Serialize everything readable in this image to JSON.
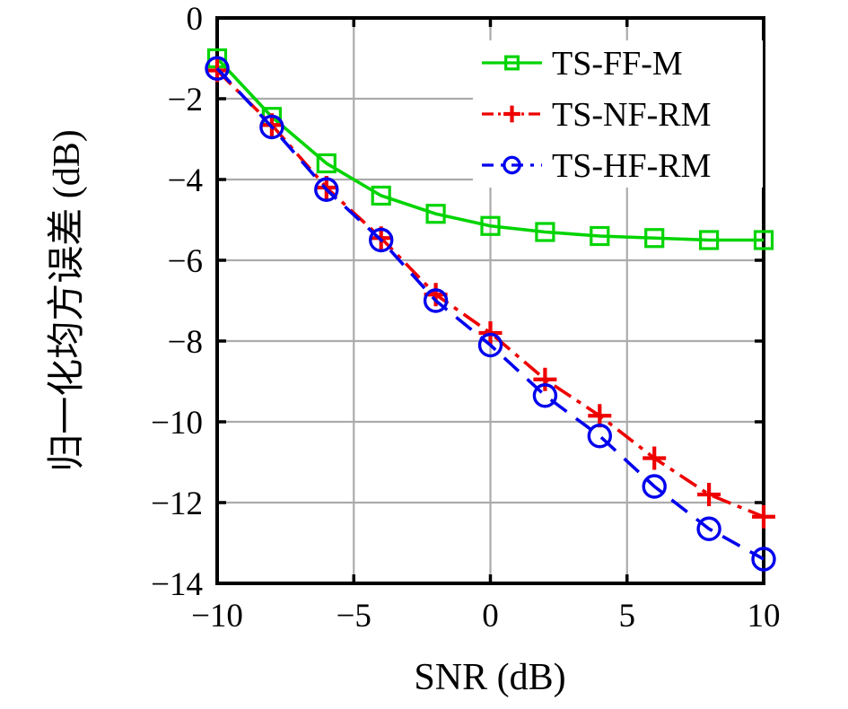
{
  "figure": {
    "background": "#ffffff",
    "axis_color": "#000000",
    "grid_color": "#ababab",
    "legend_background": "#ffffff"
  },
  "chart_data": {
    "type": "line",
    "title": "",
    "xlabel": "SNR (dB)",
    "ylabel": "归一化均方误差 (dB)",
    "xlim": [
      -10,
      10
    ],
    "ylim": [
      -14,
      0
    ],
    "grid": true,
    "legend_position": "top-right-inside",
    "x": [
      -10,
      -8,
      -6,
      -4,
      -2,
      0,
      2,
      4,
      6,
      8,
      10
    ],
    "xticks": {
      "values": [
        -10,
        -5,
        0,
        5,
        10
      ],
      "labels": [
        "−10",
        "−5",
        "0",
        "5",
        "10"
      ]
    },
    "yticks": {
      "values": [
        0,
        -2,
        -4,
        -6,
        -8,
        -10,
        -12,
        -14
      ],
      "labels": [
        "0",
        "−2",
        "−4",
        "−6",
        "−8",
        "−10",
        "−12",
        "−14"
      ]
    },
    "series": [
      {
        "name": "TS-FF-M",
        "color": "#00d400",
        "marker": "square",
        "linestyle": "solid",
        "values": [
          -1.0,
          -2.45,
          -3.6,
          -4.4,
          -4.85,
          -5.15,
          -5.3,
          -5.4,
          -5.45,
          -5.5,
          -5.5
        ]
      },
      {
        "name": "TS-NF-RM",
        "color": "#ee0000",
        "marker": "plus",
        "linestyle": "dashdot",
        "values": [
          -1.3,
          -2.65,
          -4.2,
          -5.45,
          -6.85,
          -7.8,
          -8.95,
          -9.85,
          -10.9,
          -11.8,
          -12.35
        ]
      },
      {
        "name": "TS-HF-RM",
        "color": "#0000ee",
        "marker": "circle",
        "linestyle": "dashed",
        "values": [
          -1.25,
          -2.7,
          -4.25,
          -5.5,
          -7.0,
          -8.1,
          -9.35,
          -10.35,
          -11.6,
          -12.65,
          -13.4
        ]
      }
    ]
  }
}
